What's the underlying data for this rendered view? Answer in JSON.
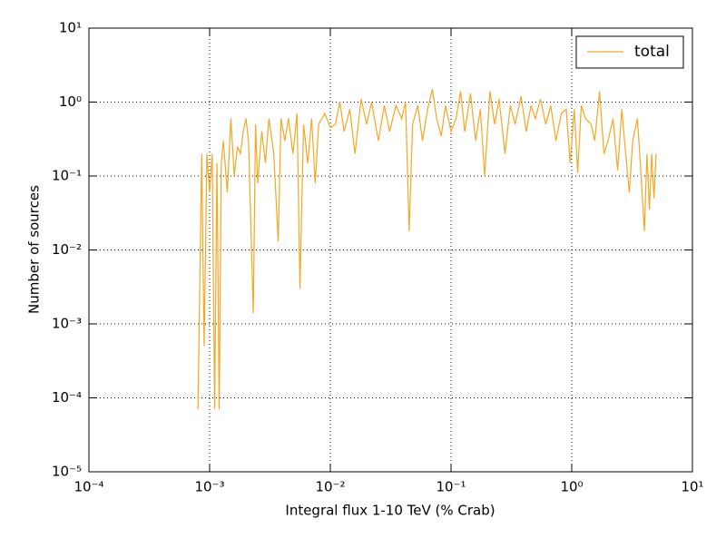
{
  "chart_data": {
    "type": "line",
    "xlabel": "Integral flux 1-10 TeV (% Crab)",
    "ylabel": "Number of sources",
    "xscale": "log",
    "yscale": "log",
    "grid": true,
    "legend_loc": "upper right",
    "xlim": [
      0.0001,
      10
    ],
    "ylim": [
      1e-05,
      10
    ],
    "xticks": [
      {
        "value": 0.0001,
        "label": "10⁻⁴"
      },
      {
        "value": 0.001,
        "label": "10⁻³"
      },
      {
        "value": 0.01,
        "label": "10⁻²"
      },
      {
        "value": 0.1,
        "label": "10⁻¹"
      },
      {
        "value": 1,
        "label": "10⁰"
      },
      {
        "value": 10,
        "label": "10¹"
      }
    ],
    "yticks": [
      {
        "value": 1e-05,
        "label": "10⁻⁵"
      },
      {
        "value": 0.0001,
        "label": "10⁻⁴"
      },
      {
        "value": 0.001,
        "label": "10⁻³"
      },
      {
        "value": 0.01,
        "label": "10⁻²"
      },
      {
        "value": 0.1,
        "label": "10⁻¹"
      },
      {
        "value": 1,
        "label": "10⁰"
      },
      {
        "value": 10,
        "label": "10¹"
      }
    ],
    "x": [
      0.0008,
      0.00086,
      0.0009,
      0.00095,
      0.001,
      0.00105,
      0.0011,
      0.00115,
      0.0012,
      0.00125,
      0.0013,
      0.0014,
      0.0015,
      0.0016,
      0.0017,
      0.0018,
      0.0019,
      0.002,
      0.0021,
      0.0023,
      0.0024,
      0.0025,
      0.0027,
      0.0029,
      0.0031,
      0.0034,
      0.0037,
      0.0039,
      0.0042,
      0.0045,
      0.0049,
      0.0053,
      0.0056,
      0.006,
      0.0065,
      0.007,
      0.0075,
      0.008,
      0.009,
      0.01,
      0.011,
      0.012,
      0.013,
      0.0145,
      0.016,
      0.018,
      0.02,
      0.022,
      0.025,
      0.028,
      0.031,
      0.035,
      0.039,
      0.042,
      0.045,
      0.048,
      0.053,
      0.058,
      0.064,
      0.07,
      0.076,
      0.083,
      0.09,
      0.1,
      0.11,
      0.12,
      0.13,
      0.145,
      0.16,
      0.175,
      0.19,
      0.21,
      0.23,
      0.25,
      0.28,
      0.31,
      0.34,
      0.38,
      0.42,
      0.46,
      0.5,
      0.55,
      0.61,
      0.67,
      0.74,
      0.82,
      0.9,
      0.97,
      1.05,
      1.12,
      1.2,
      1.3,
      1.45,
      1.55,
      1.7,
      1.85,
      2.0,
      2.2,
      2.4,
      2.6,
      2.8,
      3.0,
      3.2,
      3.5,
      3.7,
      4.0,
      4.2,
      4.4,
      4.6,
      4.8,
      5.0
    ],
    "series": [
      {
        "name": "total",
        "color": "#f5a623",
        "values": [
          7e-05,
          0.2,
          0.0005,
          0.2,
          0.06,
          0.2,
          7e-05,
          0.15,
          7e-05,
          0.15,
          0.3,
          0.06,
          0.6,
          0.1,
          0.25,
          0.2,
          0.4,
          0.6,
          0.3,
          0.0014,
          0.5,
          0.08,
          0.4,
          0.15,
          0.6,
          0.2,
          0.013,
          0.6,
          0.3,
          0.6,
          0.2,
          0.7,
          0.003,
          0.5,
          0.15,
          0.6,
          0.08,
          0.5,
          0.7,
          0.45,
          0.5,
          1.0,
          0.4,
          0.8,
          0.2,
          1.1,
          0.5,
          1.0,
          0.3,
          0.9,
          0.4,
          0.9,
          0.6,
          1.0,
          0.018,
          0.5,
          0.9,
          0.3,
          0.8,
          1.5,
          0.6,
          0.35,
          0.9,
          0.4,
          0.6,
          1.4,
          0.4,
          1.3,
          0.3,
          0.8,
          0.1,
          1.4,
          0.5,
          1.1,
          0.2,
          0.9,
          0.5,
          1.2,
          0.4,
          0.9,
          0.6,
          1.1,
          0.5,
          0.9,
          0.3,
          0.7,
          0.8,
          0.15,
          0.8,
          0.11,
          0.9,
          0.6,
          0.5,
          0.3,
          1.4,
          0.2,
          0.3,
          0.6,
          0.12,
          0.8,
          0.2,
          0.06,
          0.3,
          0.6,
          0.15,
          0.018,
          0.2,
          0.035,
          0.2,
          0.05,
          0.2
        ]
      }
    ]
  }
}
